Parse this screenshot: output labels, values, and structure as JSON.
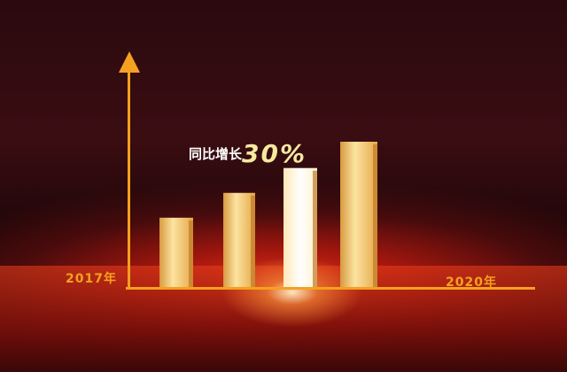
{
  "chart_data": {
    "type": "bar",
    "title": "",
    "categories": [
      "2017年",
      "",
      "",
      "2020年"
    ],
    "values": [
      48,
      65,
      82,
      100
    ],
    "start_label": "2017年",
    "end_label": "2020年",
    "annotation": {
      "text": "同比增长",
      "value": "30%"
    },
    "ylim": [
      0,
      130
    ],
    "grid": false,
    "colors": {
      "bar": "#f2c46a",
      "highlight_bar": "#fff6e0",
      "axis": "#f5a020",
      "background": "#2a0a0e"
    }
  }
}
